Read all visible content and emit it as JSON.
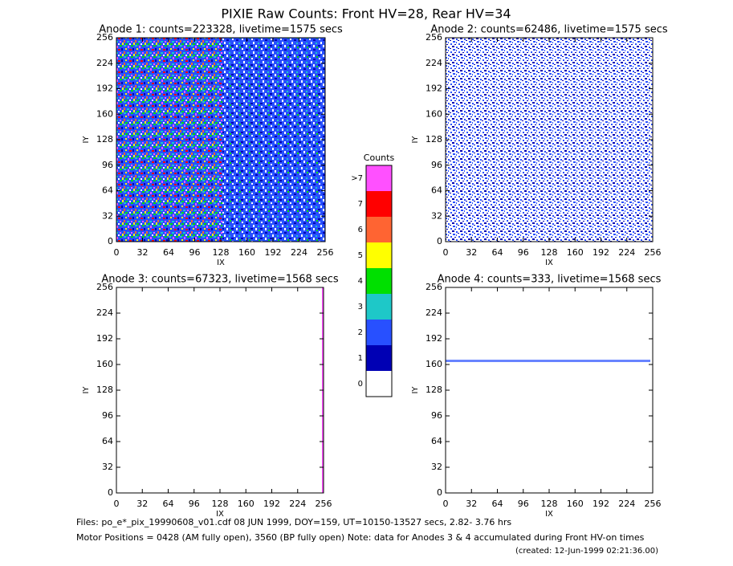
{
  "header": {
    "title": "PIXIE Raw Counts:  Front HV=28, Rear HV=34"
  },
  "chart_data": [
    {
      "type": "image",
      "title": "Anode 1: counts=223328, livetime=1575 secs",
      "xlabel": "IX",
      "ylabel": "IY",
      "xlim": [
        0,
        256
      ],
      "ylim": [
        0,
        256
      ],
      "xticks": [
        0,
        32,
        64,
        96,
        128,
        160,
        192,
        224,
        256
      ],
      "yticks": [
        0,
        32,
        64,
        96,
        128,
        160,
        192,
        224,
        256
      ]
    },
    {
      "type": "image",
      "title": "Anode 2: counts=62486, livetime=1575 secs",
      "xlabel": "IX",
      "ylabel": "IY",
      "xlim": [
        0,
        256
      ],
      "ylim": [
        0,
        256
      ],
      "xticks": [
        0,
        32,
        64,
        96,
        128,
        160,
        192,
        224,
        256
      ],
      "yticks": [
        0,
        32,
        64,
        96,
        128,
        160,
        192,
        224,
        256
      ]
    },
    {
      "type": "image",
      "title": "Anode 3: counts=67323, livetime=1568 secs",
      "xlabel": "IX",
      "ylabel": "IY",
      "xlim": [
        0,
        256
      ],
      "ylim": [
        0,
        256
      ],
      "xticks": [
        0,
        32,
        64,
        96,
        128,
        160,
        192,
        224,
        256
      ],
      "yticks": [
        0,
        32,
        64,
        96,
        128,
        160,
        192,
        224,
        256
      ]
    },
    {
      "type": "image",
      "title": "Anode 4: counts=333, livetime=1568 secs",
      "xlabel": "IX",
      "ylabel": "IY",
      "xlim": [
        0,
        256
      ],
      "ylim": [
        0,
        256
      ],
      "xticks": [
        0,
        32,
        64,
        96,
        128,
        160,
        192,
        224,
        256
      ],
      "yticks": [
        0,
        32,
        64,
        96,
        128,
        160,
        192,
        224,
        256
      ]
    }
  ],
  "colorbar": {
    "title": "Counts",
    "labels": [
      "0",
      "1",
      "2",
      "3",
      "4",
      "5",
      "6",
      "7",
      ">7"
    ],
    "colors": [
      "#ffffff",
      "#0000b4",
      "#2850ff",
      "#1ec8c8",
      "#00e000",
      "#ffff00",
      "#ff6432",
      "#ff0000",
      "#ff50ff"
    ]
  },
  "footer": {
    "files": "Files: po_e*_pix_19990608_v01.cdf    08 JUN 1999, DOY=159, UT=10150-13527 secs,  2.82- 3.76 hrs",
    "motor": "Motor Positions = 0428 (AM fully open), 3560 (BP fully open)    Note: data for Anodes 3 & 4 accumulated during Front HV-on times",
    "created": "(created: 12-Jun-1999 02:21:36.00)"
  }
}
